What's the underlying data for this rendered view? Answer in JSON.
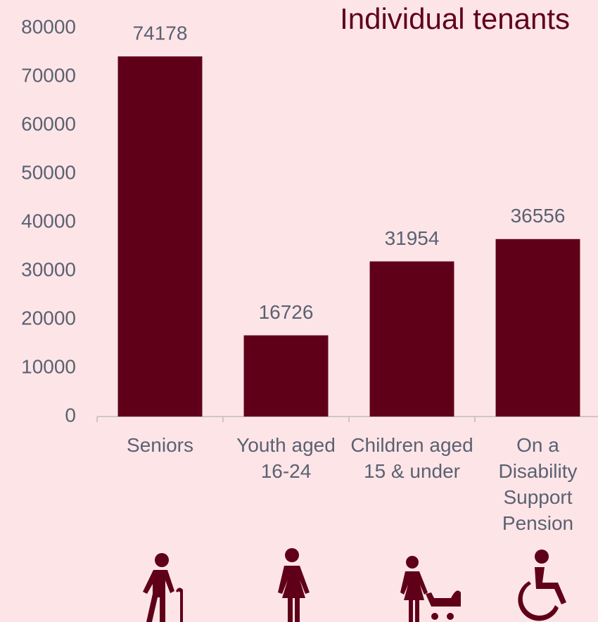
{
  "chart_data": {
    "type": "bar",
    "title": "Individual tenants",
    "categories": [
      "Seniors",
      "Youth aged 16-24",
      "Children aged 15 & under",
      "On a Disability Support Pension"
    ],
    "values": [
      74178,
      16726,
      31954,
      36556
    ],
    "color": "#600018",
    "ylim": [
      0,
      80000
    ],
    "yticks": [
      0,
      10000,
      20000,
      30000,
      40000,
      50000,
      60000,
      70000,
      80000
    ],
    "grid": false
  }
}
